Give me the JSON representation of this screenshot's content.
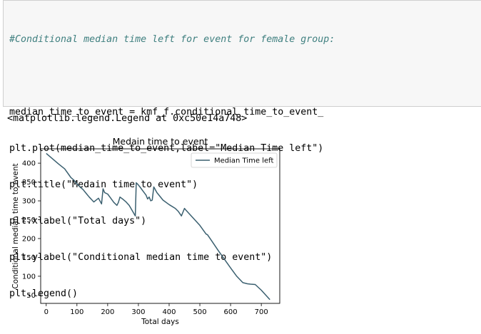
{
  "code_cell": {
    "comment": "#Conditional median time left for event for female group:",
    "lines": [
      "median_time_to_event = kmf_f.conditional_time_to_event_",
      "plt.plot(median_time_to_event,label=\"Median Time left\")",
      "plt.title(\"Medain time to event\")",
      "plt.xlabel(\"Total days\")",
      "plt.ylabel(\"Conditional median time to event\")",
      "plt.legend()"
    ]
  },
  "output": {
    "repr": "<matplotlib.legend.Legend at 0xc50e14a748>"
  },
  "chart_data": {
    "type": "line",
    "title": "Medain time to event",
    "xlabel": "Total days",
    "ylabel": "Conditional median time to event",
    "xlim": [
      -18,
      760
    ],
    "ylim": [
      28,
      438
    ],
    "xticks": [
      0,
      100,
      200,
      300,
      400,
      500,
      600,
      700
    ],
    "yticks": [
      50,
      100,
      150,
      200,
      250,
      300,
      350,
      400
    ],
    "legend_position": "top-right",
    "series": [
      {
        "name": "Median Time left",
        "color": "#3a5f6f",
        "x": [
          0,
          20,
          40,
          60,
          75,
          80,
          90,
          100,
          110,
          120,
          130,
          140,
          155,
          170,
          180,
          185,
          190,
          200,
          210,
          220,
          230,
          235,
          240,
          250,
          260,
          270,
          280,
          290,
          293,
          298,
          305,
          315,
          325,
          330,
          335,
          340,
          345,
          350,
          360,
          380,
          400,
          420,
          430,
          440,
          450,
          455,
          470,
          500,
          520,
          525,
          540,
          560,
          580,
          600,
          620,
          640,
          655,
          665,
          680,
          700,
          720,
          728
        ],
        "y": [
          426,
          412,
          398,
          385,
          368,
          362,
          355,
          345,
          337,
          330,
          320,
          310,
          297,
          307,
          292,
          332,
          322,
          318,
          307,
          296,
          288,
          296,
          310,
          304,
          297,
          288,
          274,
          260,
          348,
          344,
          337,
          326,
          315,
          305,
          310,
          300,
          302,
          337,
          322,
          302,
          290,
          280,
          272,
          260,
          280,
          275,
          262,
          235,
          212,
          210,
          192,
          168,
          145,
          122,
          100,
          83,
          80,
          79,
          78,
          63,
          45,
          38
        ]
      }
    ]
  }
}
